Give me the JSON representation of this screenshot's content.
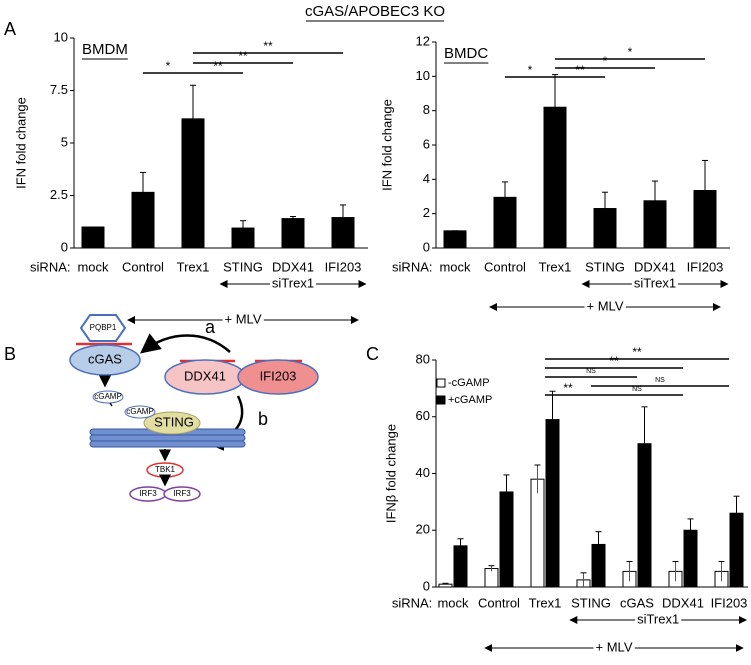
{
  "title": "cGAS/APOBEC3 KO",
  "panel_labels": [
    "A",
    "B",
    "C"
  ],
  "chart_data": [
    {
      "type": "bar",
      "title": "BMDM",
      "ylabel": "IFN fold change",
      "xlabel_prefix": "siRNA:",
      "categories": [
        "mock",
        "Control",
        "Trex1",
        "STING",
        "DDX41",
        "IFI203"
      ],
      "series": [
        {
          "color": "#000000",
          "values": [
            1,
            2.65,
            6.15,
            0.95,
            1.4,
            1.45
          ],
          "errors": [
            0,
            0.95,
            1.6,
            0.35,
            0.1,
            0.6
          ]
        }
      ],
      "ylim": [
        0,
        10
      ],
      "yticks": [
        0,
        2.5,
        5,
        7.5,
        10
      ],
      "brackets": [
        {
          "from": 1,
          "to": 2,
          "label": "*"
        },
        {
          "from": 2,
          "to": 3,
          "label": "**"
        },
        {
          "from": 2,
          "to": 4,
          "label": "**"
        },
        {
          "from": 2,
          "to": 5,
          "label": "**"
        }
      ],
      "group": {
        "label": "siTrex1",
        "from": 3,
        "to": 5
      },
      "condition": {
        "label": "+ MLV",
        "from": 1,
        "to": 5
      }
    },
    {
      "type": "bar",
      "title": "BMDC",
      "ylabel": "IFN fold change",
      "xlabel_prefix": "siRNA:",
      "categories": [
        "mock",
        "Control",
        "Trex1",
        "STING",
        "DDX41",
        "IFI203"
      ],
      "series": [
        {
          "color": "#000000",
          "values": [
            1,
            2.95,
            8.2,
            2.3,
            2.75,
            3.35
          ],
          "errors": [
            0,
            0.9,
            1.9,
            0.95,
            1.15,
            1.75
          ]
        }
      ],
      "ylim": [
        0,
        12
      ],
      "yticks": [
        0,
        2,
        4,
        6,
        8,
        10,
        12
      ],
      "brackets": [
        {
          "from": 1,
          "to": 2,
          "label": "*"
        },
        {
          "from": 2,
          "to": 3,
          "label": "**"
        },
        {
          "from": 2,
          "to": 4,
          "label": "*"
        },
        {
          "from": 2,
          "to": 5,
          "label": "*"
        }
      ],
      "group": {
        "label": "siTrex1",
        "from": 3,
        "to": 5
      },
      "condition": {
        "label": "+ MLV",
        "from": 1,
        "to": 5
      }
    },
    {
      "type": "bar",
      "ylabel": "IFNβ fold change",
      "xlabel_prefix": "siRNA:",
      "categories": [
        "mock",
        "Control",
        "Trex1",
        "STING",
        "cGAS",
        "DDX41",
        "IFI203"
      ],
      "series": [
        {
          "name": "-cGAMP",
          "color": "#ffffff",
          "values": [
            1,
            6.5,
            38,
            2.5,
            5.5,
            5.5,
            5.5
          ],
          "errors": [
            0.3,
            1,
            5,
            2.5,
            3.5,
            3.5,
            3.5
          ]
        },
        {
          "name": "+cGAMP",
          "color": "#000000",
          "values": [
            14.5,
            33.5,
            59,
            15,
            50.5,
            20,
            26
          ],
          "errors": [
            2.5,
            6,
            10,
            4.5,
            13,
            4,
            6
          ]
        }
      ],
      "ylim": [
        0,
        80
      ],
      "yticks": [
        0,
        20,
        40,
        60,
        80
      ],
      "brackets": [
        {
          "from": 2,
          "to": 3,
          "label": "**"
        },
        {
          "from": 3,
          "to": 5,
          "label": "NS"
        },
        {
          "from": 3,
          "to": 6,
          "label": "NS"
        },
        {
          "from": 2,
          "to": 4,
          "label": "NS"
        },
        {
          "from": 2,
          "to": 5,
          "label": "**"
        },
        {
          "from": 2,
          "to": 6,
          "label": "**"
        }
      ],
      "group": {
        "label": "siTrex1",
        "from": 3,
        "to": 6
      },
      "condition": {
        "label": "+ MLV",
        "from": 1,
        "to": 6
      }
    }
  ],
  "diagram": {
    "pqbp1": "PQBP1",
    "cgas": "cGAS",
    "ddx41": "DDX41",
    "ifi203": "IFI203",
    "cgamp1": "cGAMP",
    "cgamp2": "cGAMP",
    "sting": "STING",
    "tbk1": "TBK1",
    "irf3a": "IRF3",
    "irf3b": "IRF3",
    "arrow_a": "a",
    "arrow_b": "b"
  }
}
